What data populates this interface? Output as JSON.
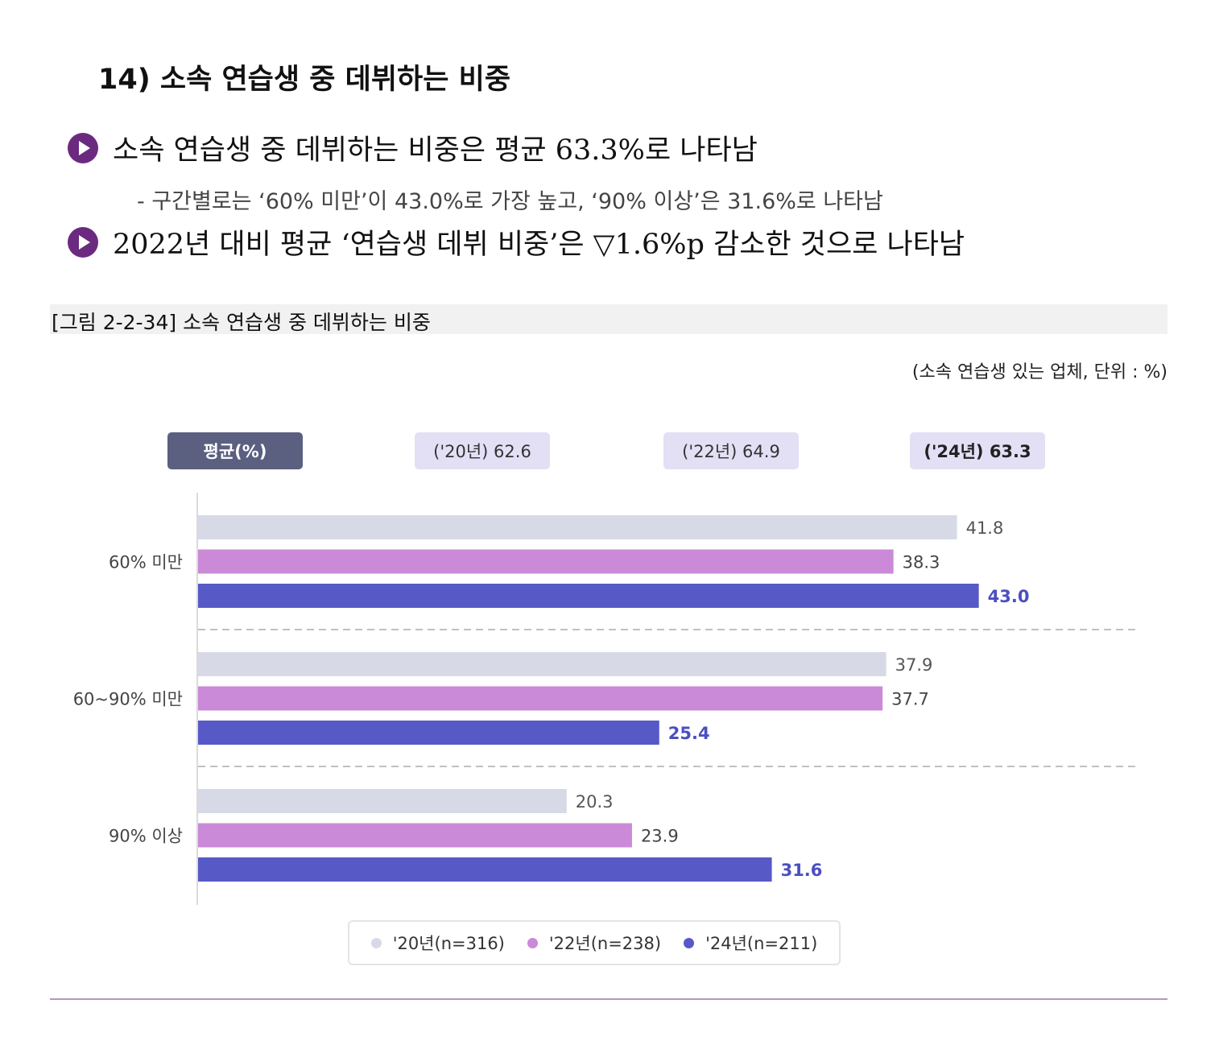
{
  "section_title": "14) 소속 연습생 중 데뷔하는 비중",
  "bullets": [
    "소속 연습생 중 데뷔하는 비중은 평균 63.3%로 나타남",
    "2022년 대비 평균 ‘연습생 데뷔 비중’은 ▽1.6%p 감소한 것으로 나타남"
  ],
  "sub_bullet": "- 구간별로는 ‘60% 미만’이 43.0%로 가장 높고, ‘90% 이상’은 31.6%로 나타남",
  "figure_caption": "[그림 2-2-34] 소속 연습생 중 데뷔하는 비중",
  "unit_note": "(소속 연습생 있는 업체, 단위 : %)",
  "averages": {
    "header": "평균(%)",
    "items": [
      "('20년) 62.6",
      "('22년) 64.9",
      "('24년) 63.3"
    ]
  },
  "colors": {
    "s2020": "#d7dae6",
    "s2022": "#cb8ad8",
    "s2024": "#5759c7",
    "label2024": "#4b4fc0"
  },
  "chart_data": {
    "type": "bar",
    "orientation": "horizontal",
    "categories": [
      "60% 미만",
      "60~90% 미만",
      "90% 이상"
    ],
    "series": [
      {
        "name": "'20년(n=316)",
        "values": [
          41.8,
          37.9,
          20.3
        ]
      },
      {
        "name": "'22년(n=238)",
        "values": [
          38.3,
          37.7,
          23.9
        ]
      },
      {
        "name": "'24년(n=211)",
        "values": [
          43.0,
          25.4,
          31.6
        ]
      }
    ],
    "value_labels": [
      [
        "41.8",
        "37.9",
        "20.3"
      ],
      [
        "38.3",
        "37.7",
        "23.9"
      ],
      [
        "43.0",
        "25.4",
        "31.6"
      ]
    ],
    "xlim": [
      0,
      50
    ],
    "grid": false,
    "legend_position": "bottom"
  }
}
